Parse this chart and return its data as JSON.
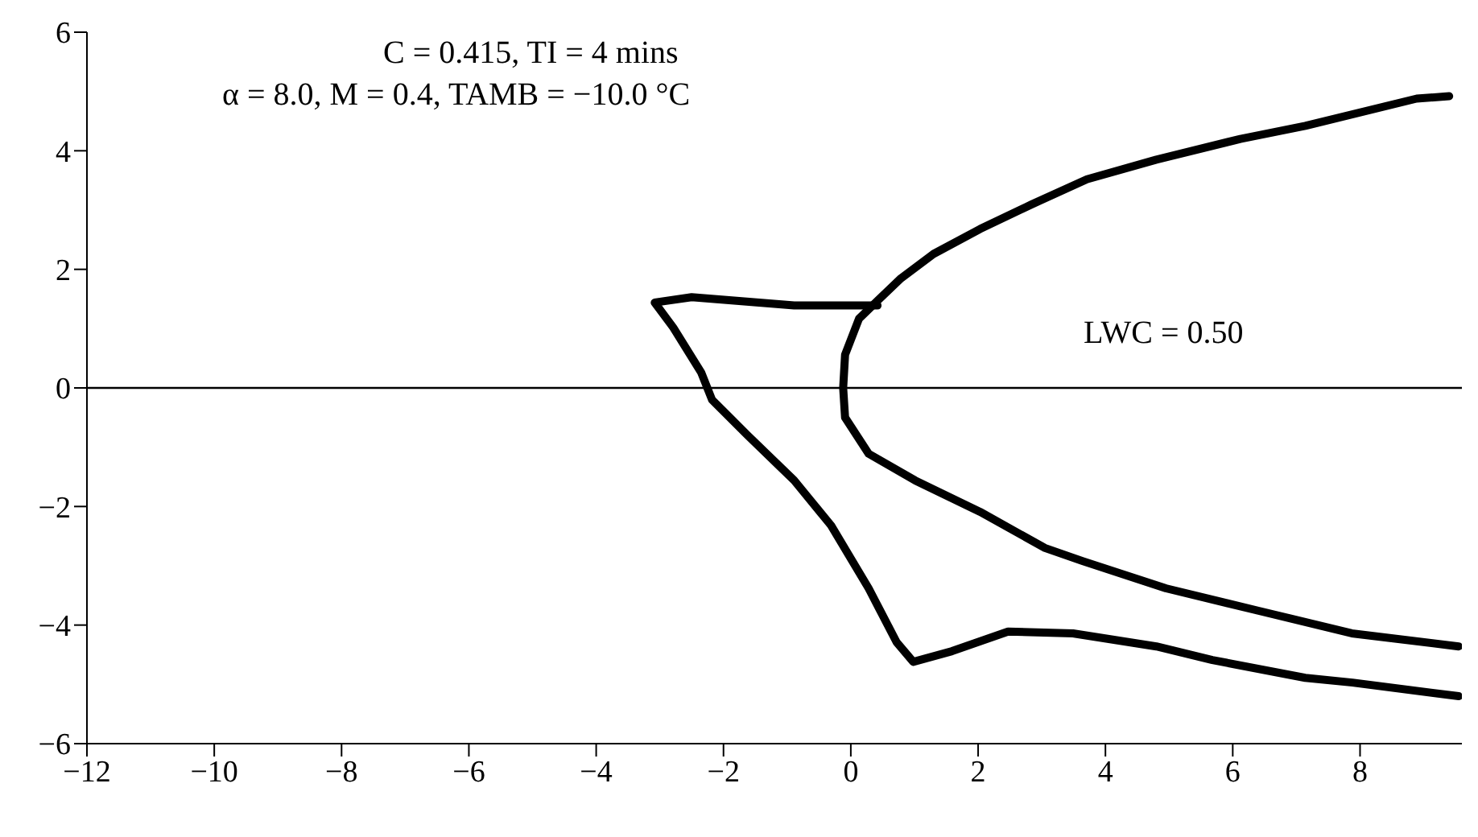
{
  "chart_data": {
    "type": "line",
    "annotations": [
      "C = 0.415, TI = 4 mins",
      "α = 8.0, M = 0.4, TAMB = −10.0 °C",
      "LWC = 0.50"
    ],
    "series": [
      {
        "color": "#000000",
        "x": [
          9.4,
          8.89,
          7.14,
          6.12,
          4.8,
          3.71,
          2.83,
          2.03,
          1.3,
          0.79,
          0.42,
          0.13,
          -0.09,
          -0.12,
          -0.09,
          0.28,
          1.01,
          2.03,
          3.05,
          3.64,
          4.95,
          6.41,
          7.87,
          9.55
        ],
        "values": [
          4.92,
          4.88,
          4.42,
          4.2,
          3.85,
          3.52,
          3.09,
          2.68,
          2.26,
          1.85,
          1.47,
          1.17,
          0.56,
          0,
          -0.5,
          -1.11,
          -1.56,
          -2.09,
          -2.7,
          -2.92,
          -3.38,
          -3.76,
          -4.14,
          -4.36
        ]
      },
      {
        "color": "#000000",
        "x": [
          0.42,
          -0.89,
          -2.5,
          -3.08,
          -2.79,
          -2.35,
          -2.18,
          -1.62,
          -0.89,
          -0.31,
          0.28,
          0.72,
          0.98,
          1.59,
          2.47,
          3.49,
          4.8,
          5.68,
          7.14,
          7.88,
          9.55
        ],
        "values": [
          1.39,
          1.39,
          1.53,
          1.44,
          1.02,
          0.26,
          -0.2,
          -0.8,
          -1.56,
          -2.32,
          -3.38,
          -4.29,
          -4.62,
          -4.44,
          -4.11,
          -4.14,
          -4.36,
          -4.59,
          -4.89,
          -4.97,
          -5.2
        ]
      }
    ],
    "xlim": [
      -12,
      9.6
    ],
    "xticks": [
      -12,
      -10,
      -8,
      -6,
      -4,
      -2,
      0,
      2,
      4,
      6,
      8
    ],
    "ylim": [
      -6,
      6
    ],
    "yticks": [
      -6,
      -4,
      -2,
      0,
      2,
      4,
      6
    ],
    "ref_lines": [
      {
        "axis": "y",
        "value": 0,
        "color": "#000000"
      }
    ]
  }
}
